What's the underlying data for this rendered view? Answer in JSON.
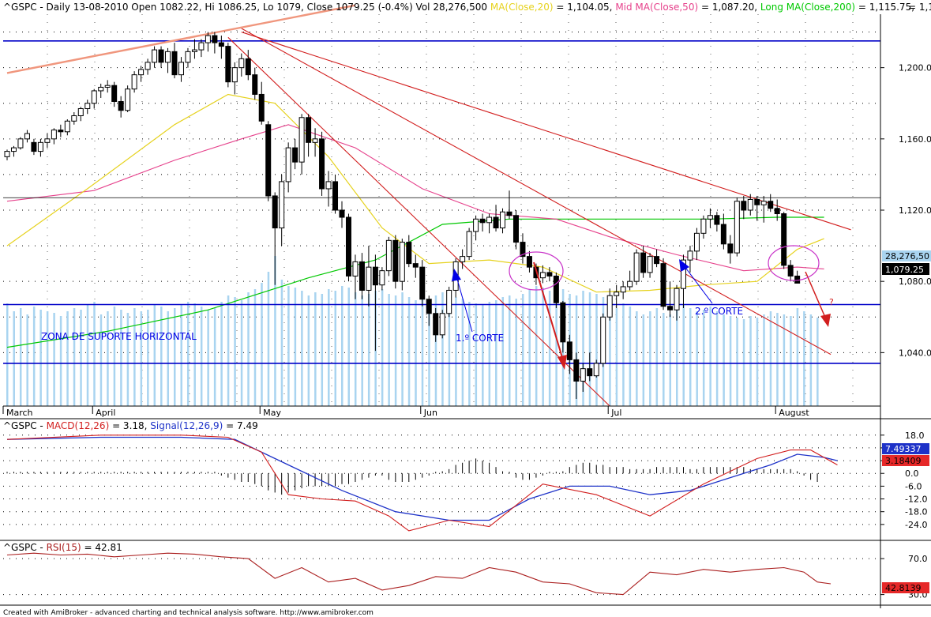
{
  "header": {
    "symbol": "^GSPC",
    "text_main": " - Daily 13-08-2010 Open 1082.22, Hi 1086.25, Lo 1079, Close 1079.25 (-0.4%) Vol 28,276,500 ",
    "ma20_label": "MA(Close,20)",
    "ma20_value": " = 1,104.05, ",
    "ma50_label": "Mid MA(Close,50)",
    "ma50_value": " = 1,087.20, ",
    "ma200_label": "Long MA(Close,200)",
    "ma200_value": " = 1,115.75,",
    "right_clip": "= 1,1"
  },
  "colors": {
    "candle_up": "#ffffff",
    "candle_down": "#000000",
    "volume": "#a9d4f0",
    "ma20": "#e6d21e",
    "ma50": "#e6428c",
    "ma200": "#00c800",
    "trend_red": "#d21e1e",
    "trend_salmon": "#f0967d",
    "support_blue": "#0000c8",
    "macd_line": "#d21e1e",
    "signal_line": "#1e32c8",
    "rsi_line": "#aa1e1e",
    "annotation_blue": "#0000e6",
    "circle": "#c832c8"
  },
  "annotations": {
    "zona": "ZONA DE SUPORTE HORIZONTAL",
    "corte1": "1.º CORTE",
    "corte2": "2.º CORTE",
    "question": "?"
  },
  "badges": {
    "volume": "28,276,50",
    "close": "1,079.25",
    "signal": "7.49337",
    "macd": "3.18409",
    "rsi": "42.8139"
  },
  "macd_header": {
    "symbol": "^GSPC",
    "macd_label": "MACD(12,26)",
    "macd_value": " = 3.18, ",
    "signal_label": "Signal(12,26,9)",
    "signal_value": " = 7.49"
  },
  "rsi_header": {
    "symbol": "^GSPC",
    "rsi_label": "RSI(15)",
    "rsi_value": " = 42.81"
  },
  "footer": "Created with AmiBroker - advanced charting and technical analysis software. http://www.amibroker.com",
  "chart_data": {
    "type": "candlestick",
    "price_axis": {
      "min": 1010,
      "max": 1230,
      "ticks": [
        "1,040.0",
        "1,080.0",
        "1,120.0",
        "1,160.0",
        "1,200.0"
      ],
      "tick_values": [
        1040,
        1080,
        1120,
        1160,
        1200
      ]
    },
    "horizontal_lines": [
      1215,
      1127,
      1067,
      1034
    ],
    "months": [
      {
        "label": "March",
        "index": 0
      },
      {
        "label": "April",
        "index": 13
      },
      {
        "label": "May",
        "index": 38
      },
      {
        "label": "Jun",
        "index": 62
      },
      {
        "label": "Jul",
        "index": 90
      },
      {
        "label": "August",
        "index": 115
      }
    ],
    "candles": [
      [
        1150,
        1154,
        1148,
        1153
      ],
      [
        1153,
        1156,
        1150,
        1155
      ],
      [
        1155,
        1161,
        1154,
        1160
      ],
      [
        1160,
        1165,
        1158,
        1163
      ],
      [
        1158,
        1160,
        1151,
        1153
      ],
      [
        1153,
        1160,
        1150,
        1158
      ],
      [
        1158,
        1163,
        1155,
        1160
      ],
      [
        1160,
        1166,
        1157,
        1165
      ],
      [
        1165,
        1168,
        1161,
        1164
      ],
      [
        1164,
        1171,
        1162,
        1170
      ],
      [
        1170,
        1175,
        1168,
        1173
      ],
      [
        1173,
        1178,
        1170,
        1177
      ],
      [
        1177,
        1182,
        1174,
        1180
      ],
      [
        1180,
        1188,
        1177,
        1187
      ],
      [
        1187,
        1191,
        1183,
        1189
      ],
      [
        1189,
        1193,
        1186,
        1190
      ],
      [
        1190,
        1192,
        1178,
        1181
      ],
      [
        1181,
        1184,
        1172,
        1176
      ],
      [
        1176,
        1190,
        1175,
        1188
      ],
      [
        1188,
        1198,
        1186,
        1196
      ],
      [
        1196,
        1201,
        1192,
        1199
      ],
      [
        1199,
        1205,
        1196,
        1203
      ],
      [
        1203,
        1212,
        1200,
        1210
      ],
      [
        1210,
        1212,
        1200,
        1203
      ],
      [
        1203,
        1211,
        1197,
        1209
      ],
      [
        1209,
        1214,
        1194,
        1196
      ],
      [
        1196,
        1206,
        1192,
        1203
      ],
      [
        1203,
        1211,
        1200,
        1209
      ],
      [
        1209,
        1216,
        1205,
        1210
      ],
      [
        1210,
        1216,
        1206,
        1214
      ],
      [
        1214,
        1220,
        1209,
        1218
      ],
      [
        1218,
        1220,
        1208,
        1214
      ],
      [
        1214,
        1218,
        1205,
        1212
      ],
      [
        1212,
        1214,
        1189,
        1192
      ],
      [
        1192,
        1203,
        1185,
        1200
      ],
      [
        1200,
        1208,
        1195,
        1205
      ],
      [
        1205,
        1210,
        1193,
        1196
      ],
      [
        1196,
        1200,
        1182,
        1185
      ],
      [
        1185,
        1192,
        1168,
        1170
      ],
      [
        1168,
        1170,
        1125,
        1128
      ],
      [
        1128,
        1130,
        1078,
        1110
      ],
      [
        1110,
        1140,
        1100,
        1136
      ],
      [
        1136,
        1158,
        1130,
        1155
      ],
      [
        1155,
        1160,
        1143,
        1147
      ],
      [
        1147,
        1174,
        1140,
        1172
      ],
      [
        1172,
        1174,
        1150,
        1158
      ],
      [
        1158,
        1166,
        1150,
        1160
      ],
      [
        1160,
        1164,
        1128,
        1132
      ],
      [
        1132,
        1142,
        1122,
        1136
      ],
      [
        1136,
        1140,
        1118,
        1120
      ],
      [
        1120,
        1125,
        1110,
        1116
      ],
      [
        1116,
        1118,
        1080,
        1083
      ],
      [
        1083,
        1095,
        1070,
        1091
      ],
      [
        1091,
        1096,
        1070,
        1075
      ],
      [
        1075,
        1100,
        1066,
        1088
      ],
      [
        1088,
        1095,
        1041,
        1078
      ],
      [
        1078,
        1088,
        1075,
        1086
      ],
      [
        1086,
        1105,
        1083,
        1103
      ],
      [
        1103,
        1106,
        1076,
        1080
      ],
      [
        1080,
        1104,
        1075,
        1102
      ],
      [
        1102,
        1106,
        1088,
        1090
      ],
      [
        1090,
        1095,
        1082,
        1088
      ],
      [
        1088,
        1092,
        1066,
        1070
      ],
      [
        1070,
        1072,
        1055,
        1062
      ],
      [
        1062,
        1065,
        1046,
        1050
      ],
      [
        1050,
        1064,
        1048,
        1062
      ],
      [
        1062,
        1077,
        1060,
        1075
      ],
      [
        1075,
        1093,
        1071,
        1091
      ],
      [
        1091,
        1098,
        1087,
        1094
      ],
      [
        1094,
        1110,
        1092,
        1108
      ],
      [
        1108,
        1117,
        1103,
        1115
      ],
      [
        1115,
        1118,
        1108,
        1113
      ],
      [
        1113,
        1118,
        1107,
        1116
      ],
      [
        1116,
        1123,
        1108,
        1110
      ],
      [
        1110,
        1121,
        1107,
        1119
      ],
      [
        1119,
        1131,
        1115,
        1117
      ],
      [
        1117,
        1120,
        1098,
        1102
      ],
      [
        1102,
        1107,
        1090,
        1094
      ],
      [
        1094,
        1097,
        1085,
        1088
      ],
      [
        1088,
        1090,
        1078,
        1082
      ],
      [
        1082,
        1089,
        1079,
        1085
      ],
      [
        1085,
        1088,
        1080,
        1083
      ],
      [
        1083,
        1085,
        1065,
        1068
      ],
      [
        1068,
        1069,
        1040,
        1046
      ],
      [
        1046,
        1050,
        1028,
        1036
      ],
      [
        1036,
        1040,
        1014,
        1024
      ],
      [
        1024,
        1034,
        1018,
        1031
      ],
      [
        1031,
        1040,
        1024,
        1027
      ],
      [
        1027,
        1036,
        1026,
        1034
      ],
      [
        1034,
        1062,
        1032,
        1060
      ],
      [
        1060,
        1076,
        1058,
        1072
      ],
      [
        1072,
        1078,
        1065,
        1074
      ],
      [
        1074,
        1080,
        1070,
        1077
      ],
      [
        1077,
        1086,
        1075,
        1080
      ],
      [
        1080,
        1098,
        1078,
        1096
      ],
      [
        1096,
        1100,
        1082,
        1085
      ],
      [
        1085,
        1096,
        1082,
        1094
      ],
      [
        1094,
        1098,
        1088,
        1090
      ],
      [
        1090,
        1093,
        1064,
        1066
      ],
      [
        1066,
        1080,
        1060,
        1064
      ],
      [
        1064,
        1078,
        1058,
        1076
      ],
      [
        1076,
        1095,
        1065,
        1092
      ],
      [
        1092,
        1100,
        1085,
        1097
      ],
      [
        1097,
        1110,
        1092,
        1107
      ],
      [
        1107,
        1117,
        1104,
        1115
      ],
      [
        1115,
        1121,
        1110,
        1117
      ],
      [
        1117,
        1119,
        1108,
        1112
      ],
      [
        1112,
        1118,
        1098,
        1101
      ],
      [
        1101,
        1106,
        1090,
        1096
      ],
      [
        1096,
        1127,
        1094,
        1125
      ],
      [
        1125,
        1128,
        1115,
        1120
      ],
      [
        1120,
        1129,
        1117,
        1126
      ],
      [
        1126,
        1128,
        1114,
        1123
      ],
      [
        1123,
        1128,
        1113,
        1125
      ],
      [
        1125,
        1129,
        1119,
        1121
      ],
      [
        1121,
        1126,
        1114,
        1118
      ],
      [
        1118,
        1119,
        1087,
        1089
      ],
      [
        1089,
        1092,
        1080,
        1083
      ],
      [
        1083,
        1086,
        1079,
        1079
      ]
    ],
    "volume": [
      65,
      60,
      62,
      58,
      63,
      61,
      60,
      59,
      57,
      60,
      62,
      61,
      64,
      66,
      58,
      60,
      63,
      61,
      59,
      62,
      60,
      61,
      64,
      63,
      60,
      62,
      64,
      66,
      65,
      63,
      61,
      62,
      66,
      70,
      69,
      67,
      72,
      74,
      78,
      85,
      95,
      80,
      76,
      75,
      73,
      70,
      72,
      71,
      74,
      73,
      76,
      75,
      72,
      70,
      71,
      73,
      74,
      71,
      70,
      72,
      69,
      67,
      68,
      66,
      70,
      72,
      71,
      69,
      68,
      66,
      65,
      64,
      66,
      67,
      69,
      70,
      68,
      71,
      74,
      76,
      75,
      73,
      72,
      74,
      71,
      70,
      73,
      72,
      71,
      69,
      64,
      62,
      65,
      63,
      60,
      58,
      60,
      62,
      59,
      58,
      65,
      64,
      62,
      60,
      61,
      63,
      60,
      58,
      57,
      56,
      55,
      57,
      56,
      58,
      60,
      59,
      58,
      57,
      62,
      60,
      58,
      56
    ],
    "ma20": [
      [
        0,
        1100
      ],
      [
        12,
        1132
      ],
      [
        25,
        1168
      ],
      [
        33,
        1185
      ],
      [
        40,
        1180
      ],
      [
        48,
        1150
      ],
      [
        56,
        1110
      ],
      [
        63,
        1090
      ],
      [
        72,
        1092
      ],
      [
        80,
        1088
      ],
      [
        88,
        1074
      ],
      [
        96,
        1075
      ],
      [
        104,
        1078
      ],
      [
        112,
        1080
      ],
      [
        118,
        1098
      ],
      [
        122,
        1104
      ]
    ],
    "ma50": [
      [
        0,
        1125
      ],
      [
        13,
        1131
      ],
      [
        25,
        1148
      ],
      [
        35,
        1160
      ],
      [
        42,
        1168
      ],
      [
        52,
        1155
      ],
      [
        62,
        1132
      ],
      [
        72,
        1118
      ],
      [
        82,
        1115
      ],
      [
        90,
        1105
      ],
      [
        100,
        1095
      ],
      [
        110,
        1086
      ],
      [
        118,
        1088
      ],
      [
        122,
        1087
      ]
    ],
    "ma200": [
      [
        0,
        1043
      ],
      [
        15,
        1052
      ],
      [
        30,
        1064
      ],
      [
        45,
        1082
      ],
      [
        55,
        1092
      ],
      [
        65,
        1112
      ],
      [
        75,
        1115
      ],
      [
        90,
        1115
      ],
      [
        105,
        1115
      ],
      [
        115,
        1116
      ],
      [
        122,
        1116
      ]
    ],
    "trendlines_red": [
      [
        35,
        1220,
        126,
        1109
      ],
      [
        33,
        1217,
        90,
        1010
      ],
      [
        35,
        1222,
        123,
        1039
      ]
    ],
    "trendline_salmon": [
      [
        0,
        1197
      ],
      [
        52,
        1235
      ]
    ],
    "macd": {
      "range": [
        -30,
        22
      ],
      "ticks": [
        18,
        12,
        6,
        0,
        -6,
        -12,
        -18,
        -24
      ]
    },
    "macd_series": [
      [
        0,
        16
      ],
      [
        14,
        18
      ],
      [
        26,
        18
      ],
      [
        33,
        17
      ],
      [
        38,
        10
      ],
      [
        42,
        -10
      ],
      [
        47,
        -12
      ],
      [
        52,
        -13
      ],
      [
        57,
        -20
      ],
      [
        60,
        -27
      ],
      [
        66,
        -22
      ],
      [
        72,
        -25
      ],
      [
        80,
        -5
      ],
      [
        88,
        -10
      ],
      [
        96,
        -20
      ],
      [
        104,
        -5
      ],
      [
        112,
        7
      ],
      [
        117,
        11
      ],
      [
        120,
        11
      ],
      [
        124,
        4
      ]
    ],
    "signal_series": [
      [
        0,
        16
      ],
      [
        14,
        17
      ],
      [
        26,
        17
      ],
      [
        34,
        16
      ],
      [
        42,
        4
      ],
      [
        50,
        -8
      ],
      [
        58,
        -18
      ],
      [
        66,
        -22
      ],
      [
        72,
        -22
      ],
      [
        78,
        -12
      ],
      [
        84,
        -6
      ],
      [
        90,
        -6
      ],
      [
        96,
        -10
      ],
      [
        102,
        -8
      ],
      [
        108,
        -2
      ],
      [
        114,
        4
      ],
      [
        118,
        9
      ],
      [
        122,
        7.5
      ],
      [
        124,
        6
      ]
    ],
    "macd_hist": [
      0,
      0,
      0,
      0,
      0,
      0,
      0,
      0,
      0,
      0,
      0,
      0,
      0,
      0,
      0,
      0,
      0,
      0,
      0,
      0,
      0,
      0,
      0,
      0,
      0,
      0,
      0,
      0,
      0,
      0,
      0,
      0,
      -1,
      -2,
      -3,
      -4,
      -4,
      -5,
      -6,
      -8,
      -9,
      -10,
      -9,
      -8,
      -7,
      -6,
      -6,
      -6,
      -6,
      -6,
      -5,
      -5,
      -4,
      -3,
      -2,
      -1,
      -1,
      -3,
      -4,
      -4,
      -4,
      -3,
      -2,
      -1,
      0,
      1,
      2,
      4,
      5,
      6,
      7,
      6,
      5,
      3,
      1,
      0,
      -2,
      -3,
      -3,
      -2,
      -1,
      0,
      0,
      1,
      3,
      4,
      5,
      5,
      4,
      4,
      3,
      3,
      3,
      2,
      2,
      2,
      2,
      3,
      3,
      3,
      3,
      3,
      2,
      2,
      3,
      3,
      3,
      3,
      3,
      3,
      3,
      2,
      2,
      2,
      2,
      2,
      2,
      2,
      1,
      -1,
      -3,
      -4
    ],
    "rsi": {
      "range": [
        20,
        85
      ],
      "ticks": [
        70.0,
        30.0
      ]
    },
    "rsi_series": [
      [
        0,
        74
      ],
      [
        4,
        76
      ],
      [
        8,
        74
      ],
      [
        12,
        75
      ],
      [
        16,
        72
      ],
      [
        20,
        74
      ],
      [
        24,
        76
      ],
      [
        28,
        75
      ],
      [
        32,
        72
      ],
      [
        36,
        70
      ],
      [
        40,
        48
      ],
      [
        44,
        60
      ],
      [
        48,
        44
      ],
      [
        52,
        48
      ],
      [
        56,
        35
      ],
      [
        60,
        40
      ],
      [
        64,
        50
      ],
      [
        68,
        48
      ],
      [
        72,
        60
      ],
      [
        76,
        55
      ],
      [
        80,
        44
      ],
      [
        84,
        42
      ],
      [
        88,
        32
      ],
      [
        92,
        30
      ],
      [
        96,
        55
      ],
      [
        100,
        52
      ],
      [
        104,
        58
      ],
      [
        108,
        55
      ],
      [
        112,
        58
      ],
      [
        116,
        60
      ],
      [
        119,
        55
      ],
      [
        121,
        44
      ],
      [
        123,
        42
      ]
    ]
  }
}
